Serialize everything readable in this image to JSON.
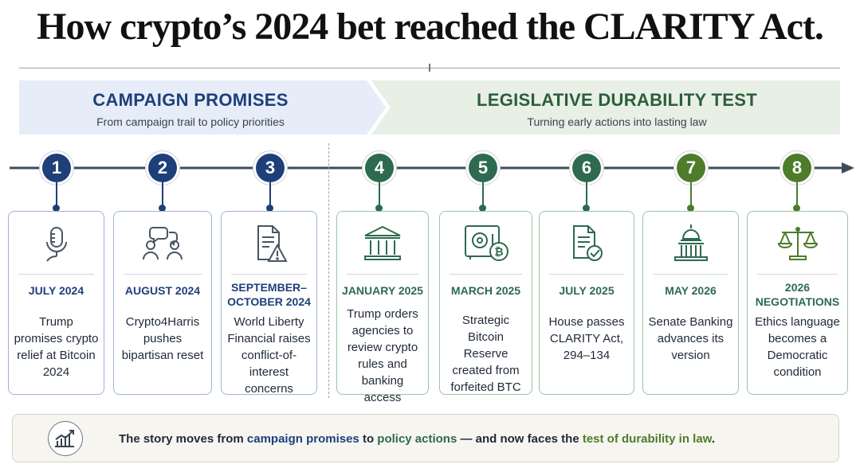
{
  "title": "How crypto’s 2024 bet reached the CLARITY Act.",
  "phases": [
    {
      "title": "CAMPAIGN PROMISES",
      "subtitle": "From campaign trail to policy priorities",
      "color": "#1e3f7a"
    },
    {
      "title": "LEGISLATIVE DURABILITY TEST",
      "subtitle": "Turning early actions into lasting law",
      "color": "#2c5e3a"
    }
  ],
  "steps": [
    {
      "number": "1",
      "date": "JULY 2024",
      "description": "Trump promises crypto relief at Bitcoin 2024",
      "icon": "microphone-icon",
      "color": "#1e3f7a"
    },
    {
      "number": "2",
      "date": "AUGUST 2024",
      "description": "Crypto4Harris pushes bipartisan reset",
      "icon": "conversation-icon",
      "color": "#1e3f7a"
    },
    {
      "number": "3",
      "date": "SEPTEMBER–OCTOBER 2024",
      "description": "World Liberty Financial raises conflict-of-interest concerns",
      "icon": "document-warning-icon",
      "color": "#1e3f7a"
    },
    {
      "number": "4",
      "date": "JANUARY 2025",
      "description": "Trump orders agencies to review crypto rules and banking access",
      "icon": "government-building-icon",
      "color": "#2d6a4f"
    },
    {
      "number": "5",
      "date": "MARCH 2025",
      "description": "Strategic Bitcoin Reserve created from forfeited BTC",
      "icon": "vault-bitcoin-icon",
      "color": "#2d6a4f"
    },
    {
      "number": "6",
      "date": "JULY 2025",
      "description": "House passes CLARITY Act, 294–134",
      "icon": "document-check-icon",
      "color": "#2d6a4f"
    },
    {
      "number": "7",
      "date": "MAY 2026",
      "description": "Senate Banking advances its version",
      "icon": "capitol-icon",
      "color": "#4d7c2a"
    },
    {
      "number": "8",
      "date": "2026 NEGOTIATIONS",
      "description": "Ethics language becomes a Democratic condition",
      "icon": "scales-icon",
      "color": "#4d7c2a"
    }
  ],
  "summary": {
    "icon": "trend-chart-icon",
    "part1": "The story moves from ",
    "highlight1": "campaign promises",
    "part2": " to ",
    "highlight2": "policy actions",
    "part3": " — and now faces the ",
    "highlight3": "test of durability in law",
    "part4": "."
  }
}
